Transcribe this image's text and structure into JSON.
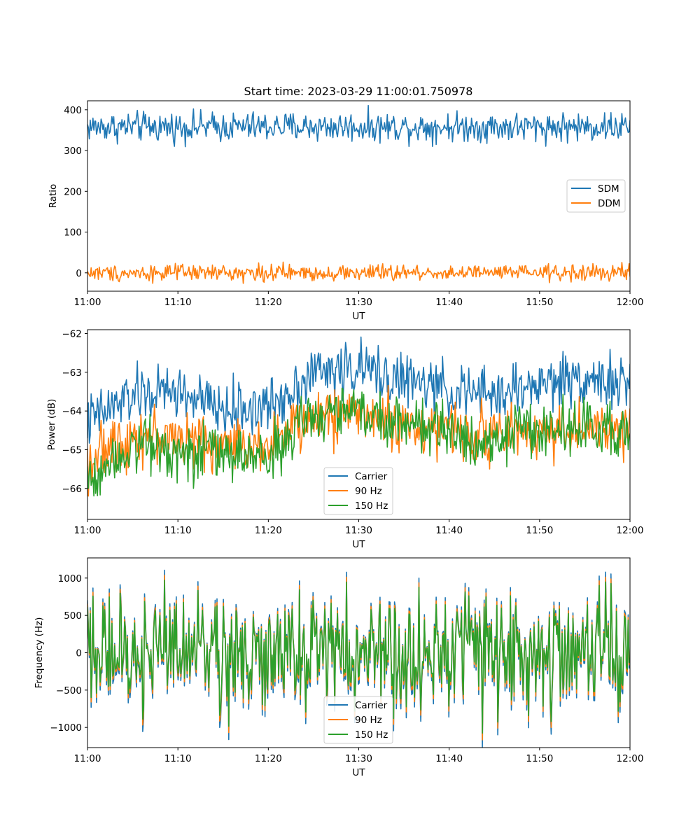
{
  "figure_title": "Start time: 2023-03-29 11:00:01.750978",
  "chart_data": [
    {
      "type": "line",
      "title": "Start time: 2023-03-29 11:00:01.750978",
      "xlabel": "UT",
      "ylabel": "Ratio",
      "x_range_minutes": [
        0,
        60
      ],
      "x_tick_values": [
        0,
        10,
        20,
        30,
        40,
        50,
        60
      ],
      "x_tick_labels": [
        "11:00",
        "11:10",
        "11:20",
        "11:30",
        "11:40",
        "11:50",
        "12:00"
      ],
      "ylim": [
        -45,
        422
      ],
      "y_tick_values": [
        0,
        100,
        200,
        300,
        400
      ],
      "y_tick_labels": [
        "0",
        "100",
        "200",
        "300",
        "400"
      ],
      "grid": false,
      "legend_placement": "center-right",
      "series": [
        {
          "name": "SDM",
          "color": "#1f77b4",
          "mean": 358,
          "amplitude": 18,
          "drift": []
        },
        {
          "name": "DDM",
          "color": "#ff7f0e",
          "mean": 0,
          "amplitude": 10,
          "drift": []
        }
      ]
    },
    {
      "type": "line",
      "xlabel": "UT",
      "ylabel": "Power (dB)",
      "x_range_minutes": [
        0,
        60
      ],
      "x_tick_values": [
        0,
        10,
        20,
        30,
        40,
        50,
        60
      ],
      "x_tick_labels": [
        "11:00",
        "11:10",
        "11:20",
        "11:30",
        "11:40",
        "11:50",
        "12:00"
      ],
      "ylim": [
        -66.8,
        -61.9
      ],
      "y_tick_values": [
        -66,
        -65,
        -64,
        -63,
        -62
      ],
      "y_tick_labels": [
        "−66",
        "−65",
        "−64",
        "−63",
        "−62"
      ],
      "grid": false,
      "legend_placement": "lower-center",
      "series": [
        {
          "name": "Carrier",
          "color": "#1f77b4",
          "amplitude": 0.35,
          "drift": [
            [
              0,
              -64.3
            ],
            [
              5,
              -63.6
            ],
            [
              10,
              -63.5
            ],
            [
              15,
              -64.0
            ],
            [
              20,
              -63.9
            ],
            [
              25,
              -63.0
            ],
            [
              30,
              -62.9
            ],
            [
              35,
              -63.2
            ],
            [
              40,
              -63.5
            ],
            [
              45,
              -63.6
            ],
            [
              50,
              -63.3
            ],
            [
              55,
              -63.1
            ],
            [
              60,
              -63.4
            ]
          ]
        },
        {
          "name": "90 Hz",
          "color": "#ff7f0e",
          "amplitude": 0.35,
          "drift": [
            [
              0,
              -65.3
            ],
            [
              5,
              -64.6
            ],
            [
              10,
              -64.7
            ],
            [
              15,
              -64.9
            ],
            [
              20,
              -64.8
            ],
            [
              25,
              -64.2
            ],
            [
              30,
              -64.0
            ],
            [
              35,
              -64.4
            ],
            [
              40,
              -64.5
            ],
            [
              45,
              -64.6
            ],
            [
              50,
              -64.5
            ],
            [
              55,
              -64.5
            ],
            [
              60,
              -64.6
            ]
          ]
        },
        {
          "name": "150 Hz",
          "color": "#2ca02c",
          "amplitude": 0.35,
          "drift": [
            [
              0,
              -65.8
            ],
            [
              5,
              -64.8
            ],
            [
              10,
              -65.0
            ],
            [
              15,
              -65.1
            ],
            [
              20,
              -65.2
            ],
            [
              25,
              -64.1
            ],
            [
              30,
              -64.0
            ],
            [
              35,
              -64.3
            ],
            [
              40,
              -64.6
            ],
            [
              45,
              -64.7
            ],
            [
              50,
              -64.5
            ],
            [
              55,
              -64.4
            ],
            [
              60,
              -64.6
            ]
          ]
        }
      ]
    },
    {
      "type": "line",
      "xlabel": "UT",
      "ylabel": "Frequency (Hz)",
      "x_range_minutes": [
        0,
        60
      ],
      "x_tick_values": [
        0,
        10,
        20,
        30,
        40,
        50,
        60
      ],
      "x_tick_labels": [
        "11:00",
        "11:10",
        "11:20",
        "11:30",
        "11:40",
        "11:50",
        "12:00"
      ],
      "ylim": [
        -1270,
        1270
      ],
      "y_tick_values": [
        -1000,
        -500,
        0,
        500,
        1000
      ],
      "y_tick_labels": [
        "−1000",
        "−500",
        "0",
        "500",
        "1000"
      ],
      "grid": false,
      "legend_placement": "lower-center",
      "series": [
        {
          "name": "Carrier",
          "color": "#1f77b4",
          "mean": 0,
          "amplitude": 380,
          "offset": -60
        },
        {
          "name": "90 Hz",
          "color": "#ff7f0e",
          "mean": 0,
          "amplitude": 380,
          "offset": -25
        },
        {
          "name": "150 Hz",
          "color": "#2ca02c",
          "mean": 0,
          "amplitude": 380,
          "offset": 0
        }
      ]
    }
  ]
}
